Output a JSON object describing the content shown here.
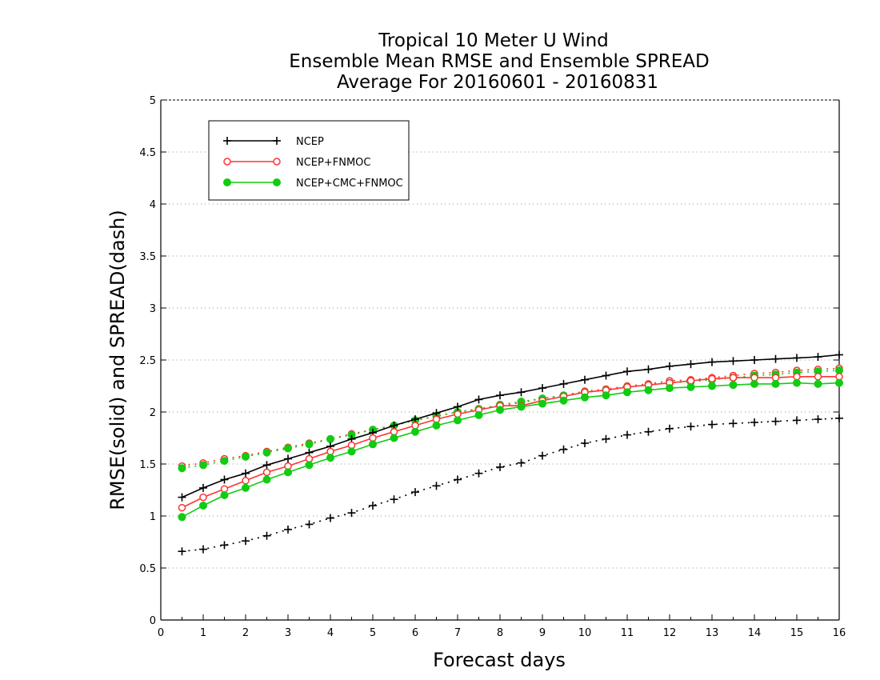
{
  "chart_data": {
    "type": "line",
    "title": [
      "Tropical 10 Meter U Wind",
      "Ensemble Mean RMSE and Ensemble SPREAD",
      "Average For 20160601 - 20160831"
    ],
    "xlabel": "Forecast days",
    "ylabel": "RMSE(solid) and SPREAD(dash)",
    "xlim": [
      0,
      16
    ],
    "ylim": [
      0,
      5
    ],
    "xticks": [
      0,
      1,
      2,
      3,
      4,
      5,
      6,
      7,
      8,
      9,
      10,
      11,
      12,
      13,
      14,
      15,
      16
    ],
    "yticks": [
      0,
      0.5,
      1,
      1.5,
      2,
      2.5,
      3,
      3.5,
      4,
      4.5,
      5
    ],
    "grid": "horizontal-dotted",
    "legend": {
      "position": "top-left",
      "entries": [
        "NCEP",
        "NCEP+FNMOC",
        "NCEP+CMC+FNMOC"
      ]
    },
    "x": [
      0.5,
      1,
      1.5,
      2,
      2.5,
      3,
      3.5,
      4,
      4.5,
      5,
      5.5,
      6,
      6.5,
      7,
      7.5,
      8,
      8.5,
      9,
      9.5,
      10,
      10.5,
      11,
      11.5,
      12,
      12.5,
      13,
      13.5,
      14,
      14.5,
      15,
      15.5,
      16
    ],
    "series": [
      {
        "name": "NCEP",
        "style": "solid",
        "marker": "plus",
        "color": "#000000",
        "values": [
          1.18,
          1.27,
          1.35,
          1.41,
          1.49,
          1.55,
          1.61,
          1.67,
          1.74,
          1.8,
          1.87,
          1.93,
          1.99,
          2.05,
          2.12,
          2.16,
          2.19,
          2.23,
          2.27,
          2.31,
          2.35,
          2.39,
          2.41,
          2.44,
          2.46,
          2.48,
          2.49,
          2.5,
          2.51,
          2.52,
          2.53,
          2.55
        ]
      },
      {
        "name": "NCEP",
        "style": "dash",
        "marker": "plus",
        "color": "#000000",
        "values": [
          0.66,
          0.68,
          0.72,
          0.76,
          0.81,
          0.87,
          0.92,
          0.98,
          1.03,
          1.1,
          1.16,
          1.23,
          1.29,
          1.35,
          1.41,
          1.47,
          1.51,
          1.58,
          1.64,
          1.7,
          1.74,
          1.78,
          1.81,
          1.84,
          1.86,
          1.88,
          1.89,
          1.9,
          1.91,
          1.92,
          1.93,
          1.94
        ]
      },
      {
        "name": "NCEP+FNMOC",
        "style": "solid",
        "marker": "open-circle",
        "color": "#ff3333",
        "values": [
          1.08,
          1.18,
          1.26,
          1.34,
          1.42,
          1.48,
          1.55,
          1.62,
          1.68,
          1.75,
          1.81,
          1.87,
          1.93,
          1.98,
          2.02,
          2.06,
          2.06,
          2.11,
          2.15,
          2.19,
          2.21,
          2.24,
          2.26,
          2.28,
          2.3,
          2.32,
          2.33,
          2.33,
          2.33,
          2.34,
          2.34,
          2.34
        ]
      },
      {
        "name": "NCEP+FNMOC",
        "style": "dash",
        "marker": "open-circle",
        "color": "#ff3333",
        "values": [
          1.48,
          1.51,
          1.55,
          1.58,
          1.62,
          1.66,
          1.7,
          1.74,
          1.79,
          1.83,
          1.87,
          1.92,
          1.96,
          2.0,
          2.03,
          2.06,
          2.09,
          2.13,
          2.16,
          2.2,
          2.22,
          2.25,
          2.27,
          2.3,
          2.31,
          2.33,
          2.35,
          2.37,
          2.38,
          2.4,
          2.41,
          2.42
        ]
      },
      {
        "name": "NCEP+CMC+FNMOC",
        "style": "solid",
        "marker": "filled-circle",
        "color": "#11cc11",
        "values": [
          0.99,
          1.1,
          1.2,
          1.27,
          1.35,
          1.42,
          1.49,
          1.56,
          1.62,
          1.69,
          1.75,
          1.81,
          1.87,
          1.92,
          1.97,
          2.02,
          2.05,
          2.08,
          2.11,
          2.14,
          2.16,
          2.19,
          2.21,
          2.23,
          2.24,
          2.25,
          2.26,
          2.27,
          2.27,
          2.28,
          2.27,
          2.28
        ]
      },
      {
        "name": "NCEP+CMC+FNMOC",
        "style": "dash",
        "marker": "filled-circle",
        "color": "#11cc11",
        "values": [
          1.46,
          1.49,
          1.53,
          1.57,
          1.61,
          1.65,
          1.69,
          1.74,
          1.78,
          1.83,
          1.87,
          1.92,
          1.96,
          2.0,
          2.03,
          2.07,
          2.1,
          2.13,
          2.16,
          2.19,
          2.21,
          2.24,
          2.26,
          2.28,
          2.29,
          2.31,
          2.33,
          2.35,
          2.36,
          2.38,
          2.39,
          2.4
        ]
      }
    ]
  }
}
